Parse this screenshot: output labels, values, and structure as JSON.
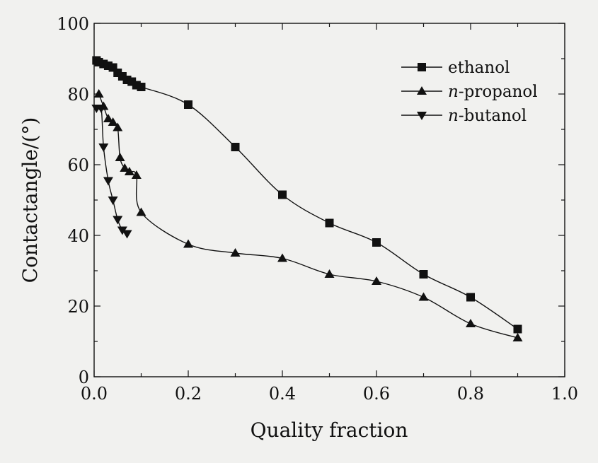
{
  "chart_data": {
    "type": "line",
    "title": "",
    "xlabel": "Quality fraction",
    "ylabel": "Contactangle/(°)",
    "xlim": [
      0.0,
      1.0
    ],
    "ylim": [
      0,
      100
    ],
    "x_ticks": [
      "0.0",
      "0.2",
      "0.4",
      "0.6",
      "0.8",
      "1.0"
    ],
    "y_ticks": [
      "0",
      "20",
      "40",
      "60",
      "80",
      "100"
    ],
    "grid": false,
    "legend_position": "top-right",
    "series": [
      {
        "name": "ethanol",
        "legend_prefix": "",
        "legend_suffix": "ethanol",
        "marker": "square",
        "points": [
          [
            0.005,
            89.5
          ],
          [
            0.01,
            89
          ],
          [
            0.02,
            88.5
          ],
          [
            0.03,
            88
          ],
          [
            0.04,
            87.5
          ],
          [
            0.05,
            86
          ],
          [
            0.06,
            85
          ],
          [
            0.07,
            84
          ],
          [
            0.08,
            83.5
          ],
          [
            0.09,
            82.5
          ],
          [
            0.1,
            82
          ],
          [
            0.2,
            77
          ],
          [
            0.3,
            65
          ],
          [
            0.4,
            51.5
          ],
          [
            0.5,
            43.5
          ],
          [
            0.6,
            38
          ],
          [
            0.7,
            29
          ],
          [
            0.8,
            22.5
          ],
          [
            0.9,
            13.5
          ]
        ]
      },
      {
        "name": "n-propanol",
        "legend_prefix": "n",
        "legend_suffix": "-propanol",
        "marker": "triangle-up",
        "points": [
          [
            0.01,
            80
          ],
          [
            0.02,
            76.5
          ],
          [
            0.03,
            73
          ],
          [
            0.04,
            72
          ],
          [
            0.05,
            70.5
          ],
          [
            0.055,
            62
          ],
          [
            0.065,
            59
          ],
          [
            0.075,
            58
          ],
          [
            0.09,
            57
          ],
          [
            0.1,
            46.5
          ],
          [
            0.2,
            37.5
          ],
          [
            0.3,
            35
          ],
          [
            0.4,
            33.5
          ],
          [
            0.5,
            29
          ],
          [
            0.6,
            27
          ],
          [
            0.7,
            22.5
          ],
          [
            0.8,
            15
          ],
          [
            0.9,
            11
          ]
        ]
      },
      {
        "name": "n-butanol",
        "legend_prefix": "n",
        "legend_suffix": "-butanol",
        "marker": "triangle-down",
        "points": [
          [
            0.005,
            76
          ],
          [
            0.015,
            76
          ],
          [
            0.02,
            65
          ],
          [
            0.03,
            55.5
          ],
          [
            0.04,
            50
          ],
          [
            0.05,
            44.5
          ],
          [
            0.06,
            41.5
          ],
          [
            0.07,
            40.5
          ]
        ]
      }
    ]
  }
}
